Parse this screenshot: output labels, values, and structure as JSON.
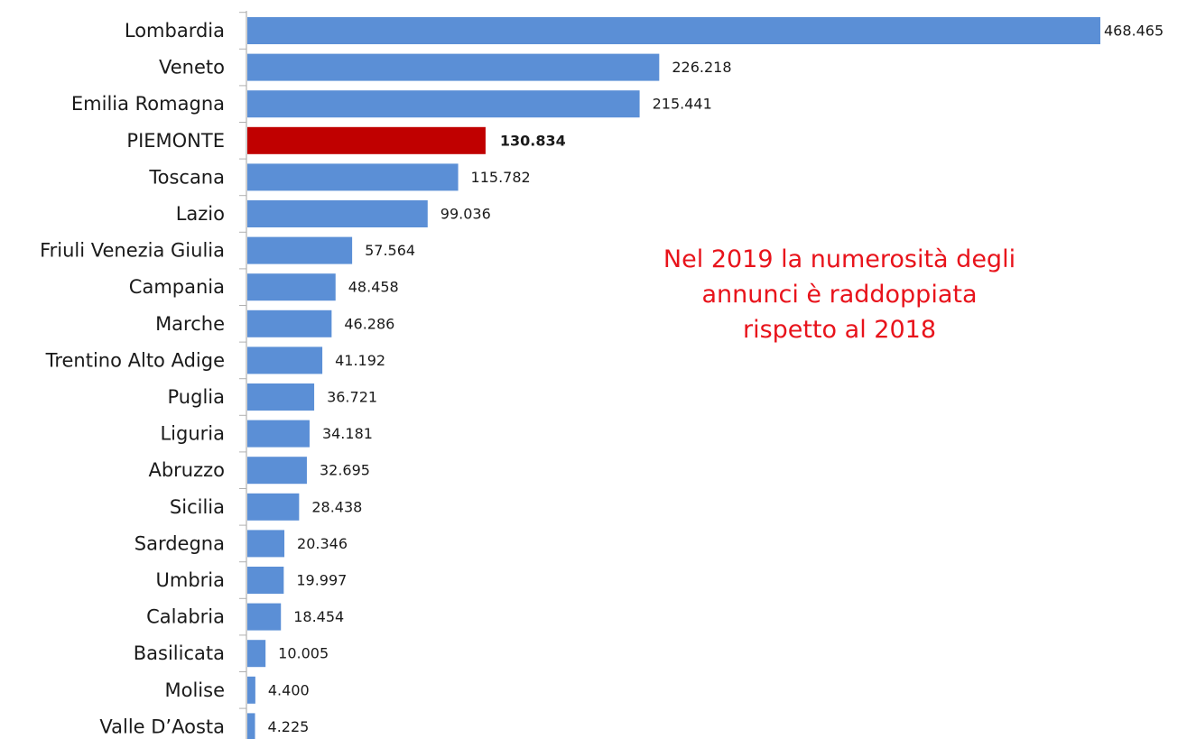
{
  "chart_data": {
    "type": "bar",
    "orientation": "horizontal",
    "categories": [
      "Lombardia",
      "Veneto",
      "Emilia Romagna",
      "PIEMONTE",
      "Toscana",
      "Lazio",
      "Friuli Venezia Giulia",
      "Campania",
      "Marche",
      "Trentino Alto Adige",
      "Puglia",
      "Liguria",
      "Abruzzo",
      "Sicilia",
      "Sardegna",
      "Umbria",
      "Calabria",
      "Basilicata",
      "Molise",
      "Valle D’Aosta"
    ],
    "values": [
      468465,
      226218,
      215441,
      130834,
      115782,
      99036,
      57564,
      48458,
      46286,
      41192,
      36721,
      34181,
      32695,
      28438,
      20346,
      19997,
      18454,
      10005,
      4400,
      4225
    ],
    "value_labels": [
      "468.465",
      "226.218",
      "215.441",
      "130.834",
      "115.782",
      "99.036",
      "57.564",
      "48.458",
      "46.286",
      "41.192",
      "36.721",
      "34.181",
      "32.695",
      "28.438",
      "20.346",
      "19.997",
      "18.454",
      "10.005",
      "4.400",
      "4.225"
    ],
    "highlight_index": 3,
    "colors": {
      "bar": "#5b8fd6",
      "highlight": "#c00000",
      "annotation": "#e8131b",
      "axis": "#b0b0b0"
    },
    "annotation": "Nel 2019 la numerosità degli\nannunci è raddoppiata\nrispetto al 2018",
    "title": "",
    "xlabel": "",
    "ylabel": "",
    "grid": false,
    "legend": "none"
  }
}
